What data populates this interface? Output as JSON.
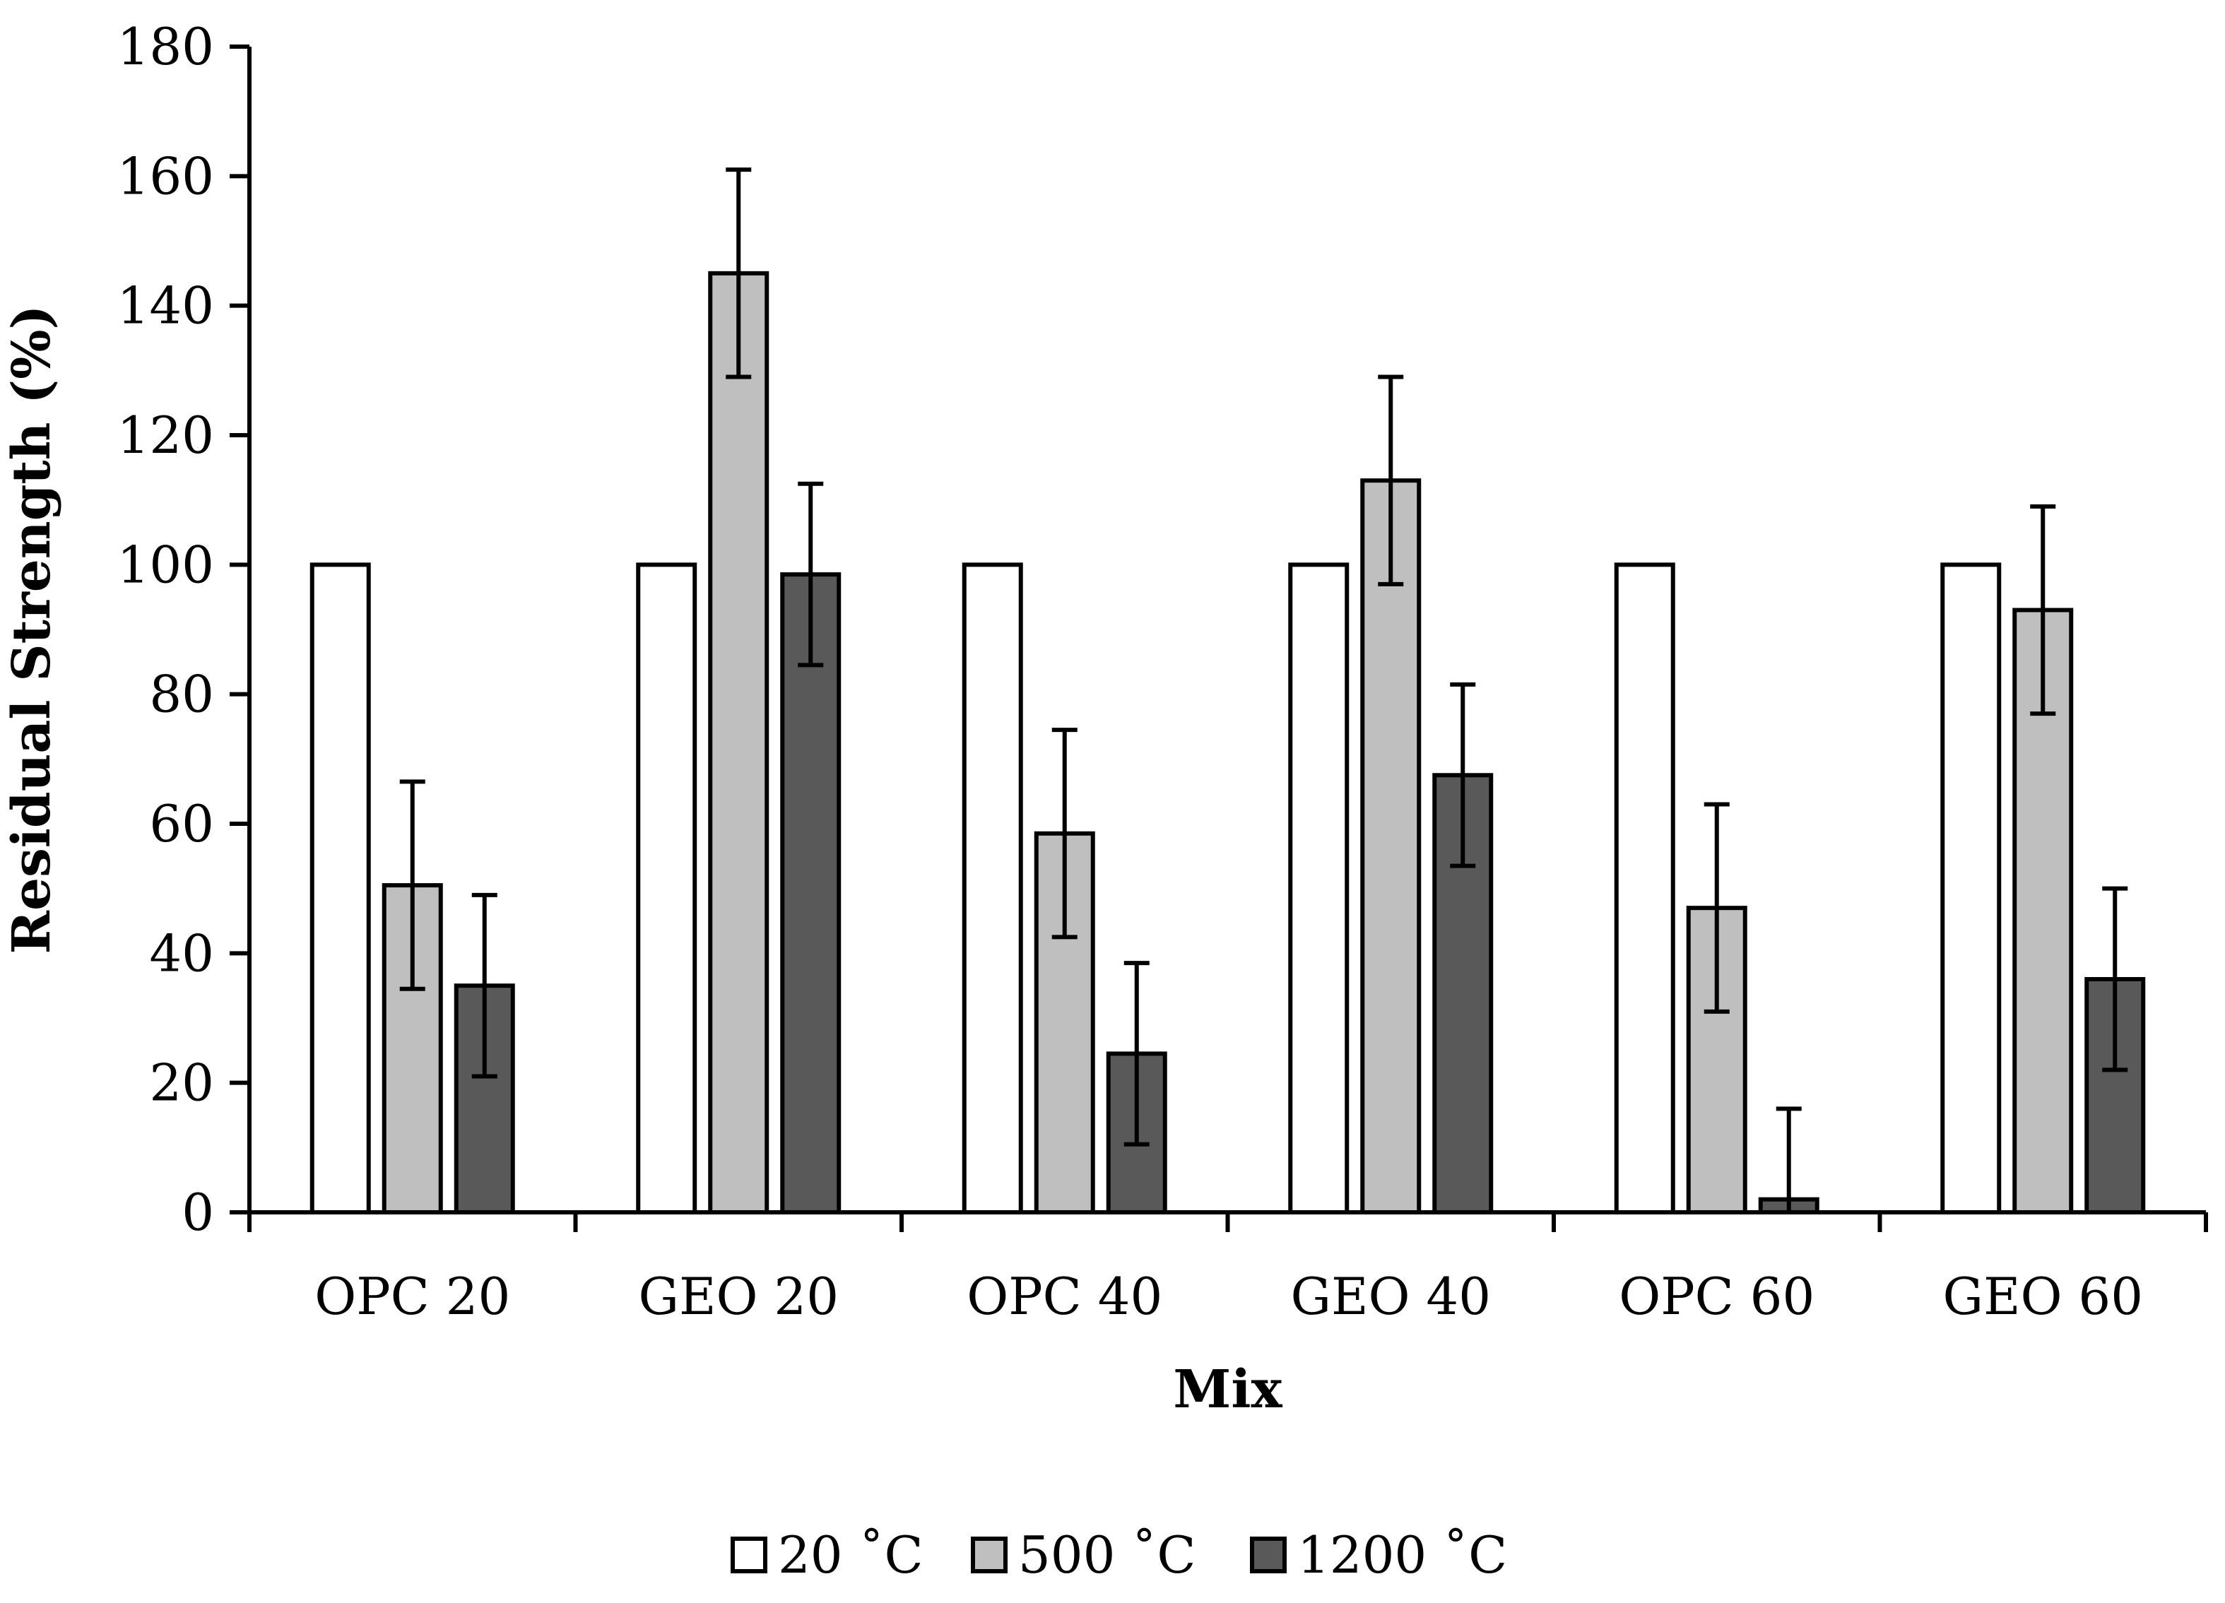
{
  "chart_data": {
    "type": "bar",
    "title": "",
    "xlabel": "Mix",
    "ylabel": "Residual Strength (%)",
    "ylim": [
      0,
      180
    ],
    "yticks": [
      0,
      20,
      40,
      60,
      80,
      100,
      120,
      140,
      160,
      180
    ],
    "grid": false,
    "legend_position": "bottom-center",
    "categories": [
      "OPC 20",
      "GEO 20",
      "OPC 40",
      "GEO 40",
      "OPC 60",
      "GEO 60"
    ],
    "series": [
      {
        "name": "20 ˚C",
        "color": "#ffffff",
        "values": [
          100,
          100,
          100,
          100,
          100,
          100
        ],
        "errors": [
          0,
          0,
          0,
          0,
          0,
          0
        ]
      },
      {
        "name": "500 ˚C",
        "color": "#bfbfbf",
        "values": [
          50.5,
          145,
          58.5,
          113,
          47,
          93
        ],
        "errors": [
          16,
          16,
          16,
          16,
          16,
          16
        ]
      },
      {
        "name": "1200 ˚C",
        "color": "#595959",
        "values": [
          35,
          98.5,
          24.5,
          67.5,
          2,
          36
        ],
        "errors": [
          14,
          14,
          14,
          14,
          14,
          14
        ]
      }
    ]
  }
}
